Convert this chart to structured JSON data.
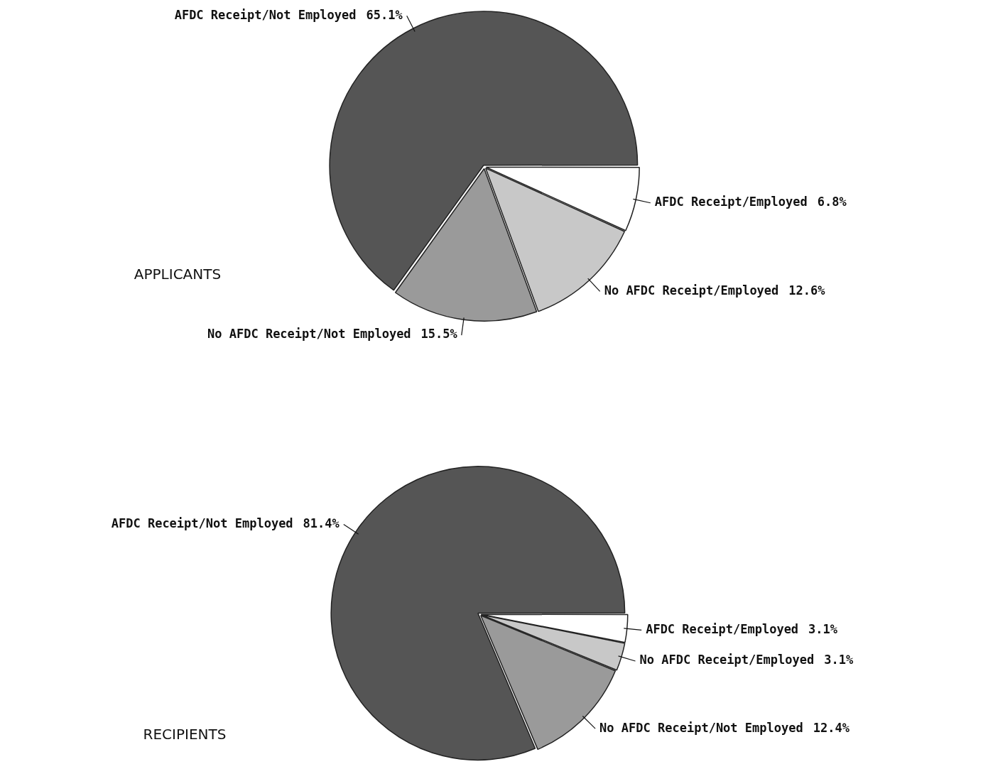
{
  "chart_data": [
    {
      "type": "pie",
      "title": "APPLICANTS",
      "categories": [
        "AFDC Receipt/Employed",
        "No AFDC Receipt/Employed",
        "No AFDC Receipt/Not Employed",
        "AFDC Receipt/Not Employed"
      ],
      "values": [
        6.8,
        12.6,
        15.5,
        65.1
      ],
      "value_labels": [
        "6.8%",
        "12.6%",
        "15.5%",
        "65.1%"
      ],
      "colors": [
        "#ffffff",
        "#c8c8c8",
        "#9a9a9a",
        "#555555"
      ]
    },
    {
      "type": "pie",
      "title": "RECIPIENTS",
      "categories": [
        "AFDC Receipt/Employed",
        "No AFDC Receipt/Employed",
        "No AFDC Receipt/Not Employed",
        "AFDC Receipt/Not Employed"
      ],
      "values": [
        3.1,
        3.1,
        12.4,
        81.4
      ],
      "value_labels": [
        "3.1%",
        "3.1%",
        "12.4%",
        "81.4%"
      ],
      "colors": [
        "#ffffff",
        "#c8c8c8",
        "#9a9a9a",
        "#555555"
      ]
    }
  ]
}
